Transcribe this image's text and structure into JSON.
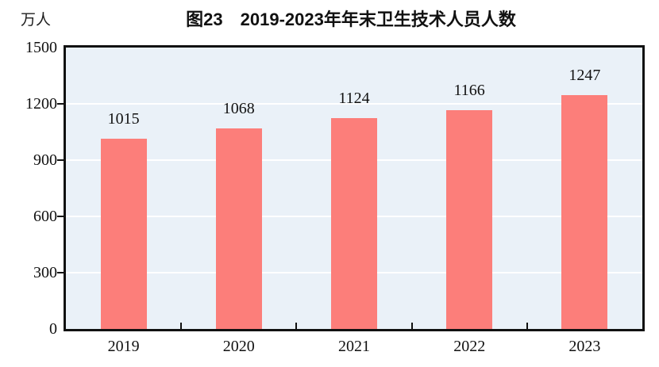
{
  "page": {
    "background": "#ffffff"
  },
  "header": {
    "title": "图23　2019-2023年年末卫生技术人员人数",
    "unit_label": "万人"
  },
  "chart_data": {
    "type": "bar",
    "title": "图23　2019-2023年年末卫生技术人员人数",
    "ylabel_unit": "万人",
    "categories": [
      "2019",
      "2020",
      "2021",
      "2022",
      "2023"
    ],
    "values": [
      1015,
      1068,
      1124,
      1166,
      1247
    ],
    "data_labels": [
      1015,
      1068,
      1124,
      1166,
      1247
    ],
    "ylim": [
      0,
      1500
    ],
    "yticks": [
      0,
      300,
      600,
      900,
      1200,
      1500
    ],
    "grid": true,
    "legend": "none",
    "bar_color": "#fc7e7a",
    "plot_bg": "#eaf1f8",
    "gridline_color": "#ffffff",
    "axis_color": "#111111",
    "label_color": "#111111"
  }
}
